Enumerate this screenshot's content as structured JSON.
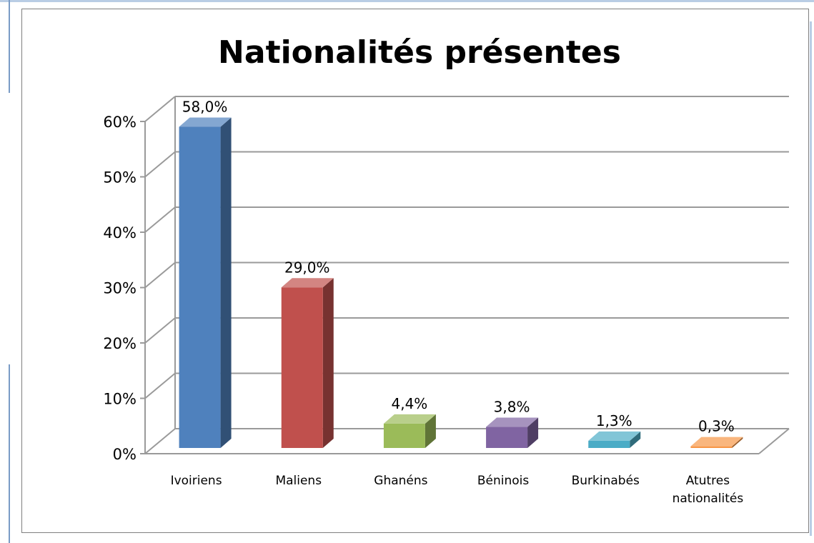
{
  "chart_data": {
    "type": "bar",
    "title": "Nationalités présentes",
    "categories": [
      "Ivoiriens",
      "Maliens",
      "Ghanéns",
      "Béninois",
      "Burkinabés",
      "Atutres nationalités"
    ],
    "values": [
      58.0,
      29.0,
      4.4,
      3.8,
      1.3,
      0.3
    ],
    "data_labels": [
      "58,0%",
      "29,0%",
      "4,4%",
      "3,8%",
      "1,3%",
      "0,3%"
    ],
    "colors": [
      "#4f81bd",
      "#c0504d",
      "#9bbb59",
      "#8064a2",
      "#4bacc6",
      "#f79646"
    ],
    "ylim": [
      0,
      60
    ],
    "y_ticks": [
      "0%",
      "10%",
      "20%",
      "30%",
      "40%",
      "50%",
      "60%"
    ],
    "xlabel": "",
    "ylabel": "",
    "grid": true,
    "style": "3d-column",
    "legend": "none"
  }
}
